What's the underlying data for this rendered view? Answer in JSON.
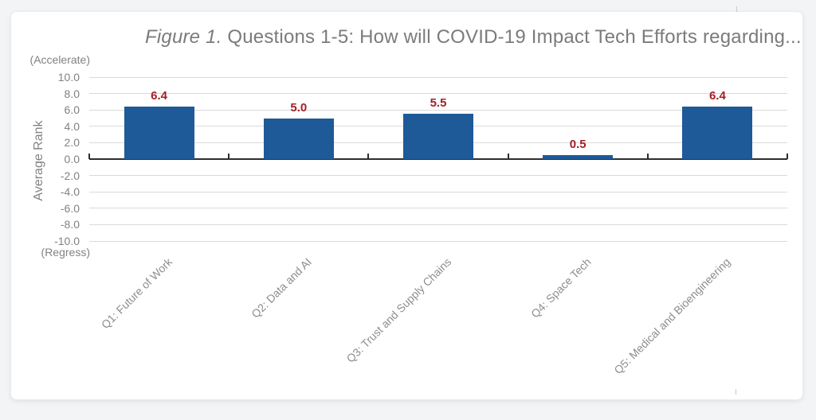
{
  "chart_data": {
    "type": "bar",
    "title_prefix": "Figure 1.",
    "title_rest": " Questions 1-5: How will COVID-19 Impact Tech Efforts regarding...",
    "categories": [
      "Q1: Future of Work",
      "Q2: Data and AI",
      "Q3: Trust and Supply Chains",
      "Q4: Space Tech",
      "Q5: Medical and Bioengineering"
    ],
    "values": [
      6.4,
      5.0,
      5.5,
      0.5,
      6.4
    ],
    "value_labels": [
      "6.4",
      "5.0",
      "5.5",
      "0.5",
      "6.4"
    ],
    "ylabel": "Average Rank",
    "y_top_caption": "(Accelerate)",
    "y_bottom_caption": "(Regress)",
    "ylim": [
      -10,
      10
    ],
    "ytick_step": 2,
    "yticks": [
      "10.0",
      "8.0",
      "6.0",
      "4.0",
      "2.0",
      "0.0",
      "-2.0",
      "-4.0",
      "-6.0",
      "-8.0",
      "-10.0"
    ],
    "grid": true,
    "legend": "none",
    "colors": {
      "bar": "#1e5a97",
      "value_label": "#a32026",
      "gridline": "#dadada",
      "axis_line": "#2e2e2e",
      "axis_text": "#828282",
      "category_text": "#8d8d8d",
      "title_text": "#7b7b7b"
    }
  }
}
